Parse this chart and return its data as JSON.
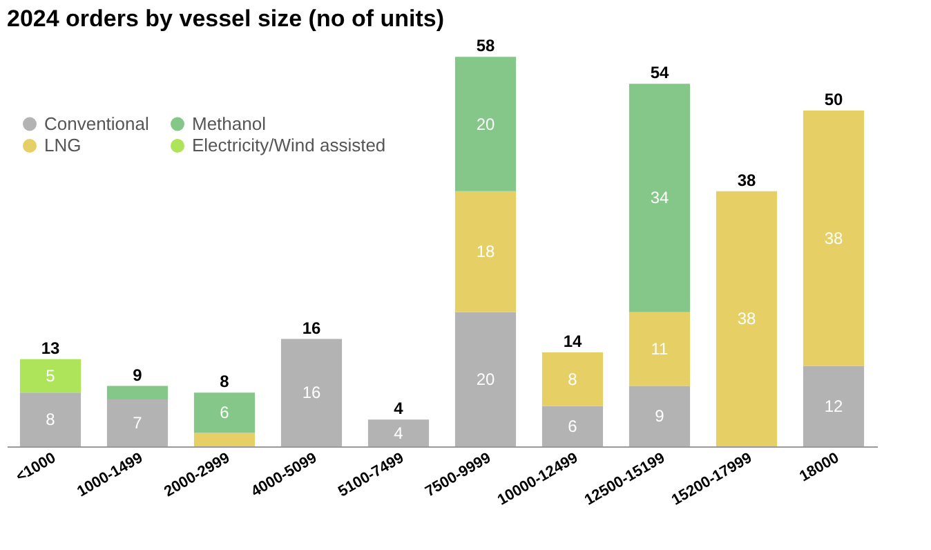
{
  "chart_data": {
    "type": "bar",
    "title": "2024 orders by vessel size (no of units)",
    "stacked": true,
    "legend": "top left",
    "categories": [
      "<1000",
      "1000-1499",
      "2000-2999",
      "4000-5099",
      "5100-7499",
      "7500-9999",
      "10000-12499",
      "12500-15199",
      "15200-17999",
      "18000"
    ],
    "series": [
      {
        "name": "Conventional",
        "color": "#b3b3b3",
        "values": [
          8,
          7,
          0,
          16,
          4,
          20,
          6,
          9,
          0,
          12
        ],
        "value_labels": [
          "8",
          "7",
          null,
          "16",
          "4",
          "20",
          "6",
          "9",
          null,
          "12"
        ]
      },
      {
        "name": "LNG",
        "color": "#e6d066",
        "values": [
          0,
          0,
          2,
          0,
          0,
          18,
          8,
          11,
          38,
          38
        ],
        "value_labels": [
          null,
          null,
          null,
          null,
          null,
          "18",
          "8",
          "11",
          "38",
          "38"
        ]
      },
      {
        "name": "Methanol",
        "color": "#84c788",
        "values": [
          0,
          2,
          6,
          0,
          0,
          20,
          0,
          34,
          0,
          0
        ],
        "value_labels": [
          null,
          null,
          "6",
          null,
          null,
          "20",
          null,
          "34",
          null,
          null
        ]
      },
      {
        "name": "Electricity/Wind assisted",
        "color": "#aee45a",
        "values": [
          5,
          0,
          0,
          0,
          0,
          0,
          0,
          0,
          0,
          0
        ],
        "value_labels": [
          "5",
          null,
          null,
          null,
          null,
          null,
          null,
          null,
          null,
          null
        ]
      }
    ],
    "totals": [
      "13",
      "9",
      "8",
      "16",
      "4",
      "58",
      "14",
      "54",
      "38",
      "50"
    ]
  }
}
